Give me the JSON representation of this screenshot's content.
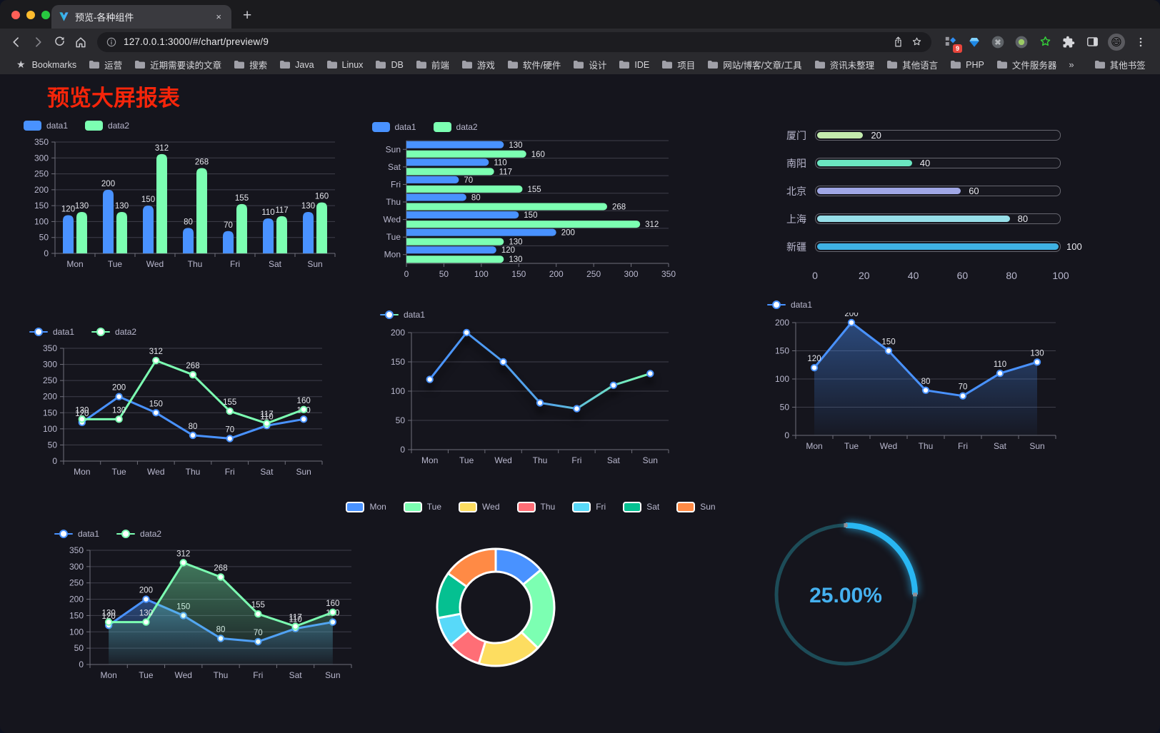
{
  "browser": {
    "tab": {
      "title": "预览-各种组件",
      "close_glyph": "×",
      "new_tab_glyph": "+"
    },
    "url": "127.0.0.1:3000/#/chart/preview/9",
    "extensions_badge": "9",
    "avatar_emoji": "😄",
    "bookmarks_bar": {
      "star_glyph": "★",
      "label": "Bookmarks",
      "folders": [
        "运营",
        "近期需要读的文章",
        "搜索",
        "Java",
        "Linux",
        "DB",
        "前端",
        "游戏",
        "软件/硬件",
        "设计",
        "IDE",
        "项目",
        "网站/博客/文章/工具",
        "资讯未整理",
        "其他语言",
        "PHP",
        "文件服务器"
      ],
      "overflow_glyph": "»",
      "other_bookmarks": "其他书签"
    }
  },
  "page": {
    "title": "预览大屏报表",
    "title_color": "#f6250a",
    "background": "#15151d"
  },
  "theme": {
    "axis_label_color": "#b9b8ce",
    "grid_line_color": "#3f3f4b",
    "axis_line_color": "#6e6e7a",
    "value_label_color": "#e3e4ea"
  },
  "chart_data": [
    {
      "id": "bar-vertical",
      "type": "bar",
      "legend": {
        "position": "top",
        "items": [
          "data1",
          "data2"
        ]
      },
      "categories": [
        "Mon",
        "Tue",
        "Wed",
        "Thu",
        "Fri",
        "Sat",
        "Sun"
      ],
      "series": [
        {
          "name": "data1",
          "color": "#4992ff",
          "values": [
            120,
            200,
            150,
            80,
            70,
            110,
            130
          ]
        },
        {
          "name": "data2",
          "color": "#7cffb2",
          "values": [
            130,
            130,
            312,
            268,
            155,
            117,
            160
          ]
        }
      ],
      "ylim": [
        0,
        350
      ],
      "ytick_step": 50,
      "grid": true,
      "value_labels": true
    },
    {
      "id": "bar-horizontal",
      "type": "bar-horizontal",
      "legend": {
        "position": "top",
        "items": [
          "data1",
          "data2"
        ]
      },
      "categories": [
        "Mon",
        "Tue",
        "Wed",
        "Thu",
        "Fri",
        "Sat",
        "Sun"
      ],
      "series": [
        {
          "name": "data1",
          "color": "#4992ff",
          "values": [
            120,
            200,
            150,
            80,
            70,
            110,
            130
          ]
        },
        {
          "name": "data2",
          "color": "#7cffb2",
          "values": [
            130,
            130,
            312,
            268,
            155,
            117,
            160
          ]
        }
      ],
      "xlim": [
        0,
        350
      ],
      "xtick_step": 50,
      "grid": true,
      "value_labels": true
    },
    {
      "id": "progress-bars",
      "type": "progress",
      "max": 100,
      "xticks": [
        0,
        20,
        40,
        60,
        80,
        100
      ],
      "items": [
        {
          "label": "厦门",
          "value": 20,
          "color": "#c4ebad"
        },
        {
          "label": "南阳",
          "value": 40,
          "color": "#6be6c1"
        },
        {
          "label": "北京",
          "value": 60,
          "color": "#a0a7e6"
        },
        {
          "label": "上海",
          "value": 80,
          "color": "#96dee8"
        },
        {
          "label": "新疆",
          "value": 100,
          "color": "#3fb1e3"
        }
      ]
    },
    {
      "id": "line-double",
      "type": "line",
      "legend": {
        "position": "top",
        "items": [
          "data1",
          "data2"
        ]
      },
      "categories": [
        "Mon",
        "Tue",
        "Wed",
        "Thu",
        "Fri",
        "Sat",
        "Sun"
      ],
      "series": [
        {
          "name": "data1",
          "color": "#4992ff",
          "values": [
            120,
            200,
            150,
            80,
            70,
            110,
            130
          ]
        },
        {
          "name": "data2",
          "color": "#7cffb2",
          "values": [
            130,
            130,
            312,
            268,
            155,
            117,
            160
          ]
        }
      ],
      "ylim": [
        0,
        350
      ],
      "ytick_step": 50,
      "grid": true,
      "value_labels": true
    },
    {
      "id": "line-gradient",
      "type": "line",
      "legend": {
        "position": "top",
        "items": [
          "data1"
        ]
      },
      "categories": [
        "Mon",
        "Tue",
        "Wed",
        "Thu",
        "Fri",
        "Sat",
        "Sun"
      ],
      "series": [
        {
          "name": "data1",
          "color": "#4992ff",
          "gradient": [
            "#4992ff",
            "#7cffb2"
          ],
          "values": [
            120,
            200,
            150,
            80,
            70,
            110,
            130
          ]
        }
      ],
      "ylim": [
        0,
        200
      ],
      "ytick_step": 50,
      "grid": true,
      "value_labels": false,
      "shadow": true
    },
    {
      "id": "area-single",
      "type": "area",
      "legend": {
        "position": "top",
        "items": [
          "data1"
        ]
      },
      "categories": [
        "Mon",
        "Tue",
        "Wed",
        "Thu",
        "Fri",
        "Sat",
        "Sun"
      ],
      "series": [
        {
          "name": "data1",
          "color": "#4992ff",
          "values": [
            120,
            200,
            150,
            80,
            70,
            110,
            130
          ]
        }
      ],
      "ylim": [
        0,
        200
      ],
      "ytick_step": 50,
      "grid": true,
      "value_labels": true
    },
    {
      "id": "area-double",
      "type": "area",
      "legend": {
        "position": "top",
        "items": [
          "data1",
          "data2"
        ]
      },
      "categories": [
        "Mon",
        "Tue",
        "Wed",
        "Thu",
        "Fri",
        "Sat",
        "Sun"
      ],
      "series": [
        {
          "name": "data1",
          "color": "#4992ff",
          "values": [
            120,
            200,
            150,
            80,
            70,
            110,
            130
          ]
        },
        {
          "name": "data2",
          "color": "#7cffb2",
          "values": [
            130,
            130,
            312,
            268,
            155,
            117,
            160
          ]
        }
      ],
      "ylim": [
        0,
        350
      ],
      "ytick_step": 50,
      "grid": true,
      "value_labels": true
    },
    {
      "id": "donut",
      "type": "pie",
      "legend": {
        "position": "top",
        "items": [
          "Mon",
          "Tue",
          "Wed",
          "Thu",
          "Fri",
          "Sat",
          "Sun"
        ]
      },
      "slices": [
        {
          "name": "Mon",
          "value": 120,
          "color": "#4992ff"
        },
        {
          "name": "Tue",
          "value": 200,
          "color": "#7cffb2"
        },
        {
          "name": "Wed",
          "value": 150,
          "color": "#fddd60"
        },
        {
          "name": "Thu",
          "value": 80,
          "color": "#ff6e76"
        },
        {
          "name": "Fri",
          "value": 70,
          "color": "#58d9f9"
        },
        {
          "name": "Sat",
          "value": 110,
          "color": "#05c091"
        },
        {
          "name": "Sun",
          "value": 130,
          "color": "#ff8a45"
        }
      ],
      "border_color": "#ffffff",
      "start_angle_deg": -90,
      "clockwise": true
    },
    {
      "id": "gauge",
      "type": "gauge",
      "value": 25,
      "max": 100,
      "label": "25.00%",
      "color": "#29b7f3",
      "track_color": "#1d4c58",
      "label_color": "#45b1ef"
    }
  ]
}
